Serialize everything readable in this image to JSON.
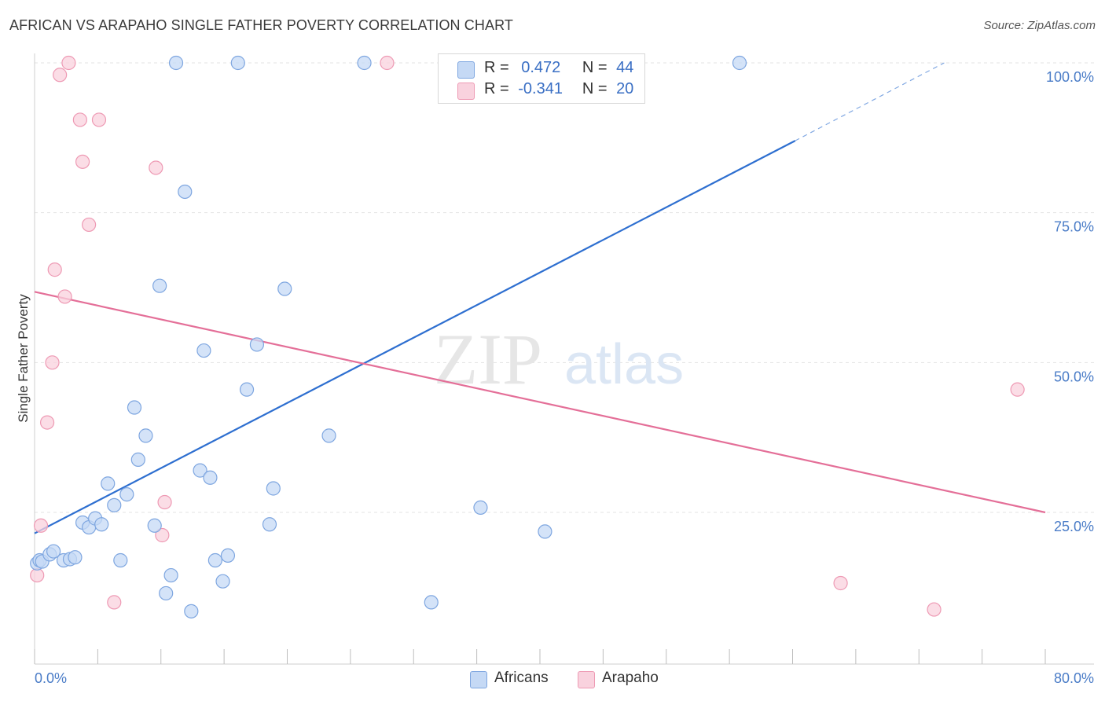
{
  "header": {
    "title": "AFRICAN VS ARAPAHO SINGLE FATHER POVERTY CORRELATION CHART",
    "source": "Source: ZipAtlas.com"
  },
  "watermark": {
    "zip": "ZIP",
    "atlas": "atlas"
  },
  "legend": {
    "r_label": "R =",
    "n_label": "N =",
    "africans": {
      "r": "0.472",
      "n": "44"
    },
    "arapaho": {
      "r": "-0.341",
      "n": "20"
    }
  },
  "bottom_legend": {
    "africans": "Africans",
    "arapaho": "Arapaho"
  },
  "colors": {
    "africans_fill": "#c5d9f5",
    "africans_stroke": "#7ea6e0",
    "africans_line": "#2e6fd0",
    "arapaho_fill": "#f9d2de",
    "arapaho_stroke": "#ee9ab4",
    "arapaho_line": "#e46f98",
    "tick_text": "#4a7cc7"
  },
  "chart_data": {
    "type": "scatter",
    "title": "AFRICAN VS ARAPAHO SINGLE FATHER POVERTY CORRELATION CHART",
    "xlabel": "",
    "ylabel": "Single Father Poverty",
    "xlim": [
      0,
      80
    ],
    "ylim": [
      0,
      105
    ],
    "x_tick_labels": [
      "0.0%",
      "80.0%"
    ],
    "y_ticks": [
      25,
      50,
      75,
      100
    ],
    "y_tick_labels": [
      "25.0%",
      "50.0%",
      "75.0%",
      "100.0%"
    ],
    "grid": "horizontal dashed",
    "legend_position": "top-center",
    "series": [
      {
        "name": "Africans",
        "r": 0.472,
        "n": 44,
        "points": [
          [
            0.2,
            16.5
          ],
          [
            0.4,
            17.0
          ],
          [
            0.6,
            16.8
          ],
          [
            1.2,
            18.0
          ],
          [
            1.5,
            18.5
          ],
          [
            2.3,
            17.0
          ],
          [
            2.8,
            17.2
          ],
          [
            3.2,
            17.5
          ],
          [
            3.8,
            23.3
          ],
          [
            4.3,
            22.5
          ],
          [
            4.8,
            24.0
          ],
          [
            5.3,
            23.0
          ],
          [
            5.8,
            29.8
          ],
          [
            6.3,
            26.2
          ],
          [
            6.8,
            17.0
          ],
          [
            7.3,
            28.0
          ],
          [
            7.9,
            42.5
          ],
          [
            8.8,
            37.8
          ],
          [
            9.5,
            22.8
          ],
          [
            8.2,
            33.8
          ],
          [
            9.9,
            62.8
          ],
          [
            10.8,
            14.5
          ],
          [
            10.4,
            11.5
          ],
          [
            11.2,
            100.0
          ],
          [
            11.9,
            78.5
          ],
          [
            12.4,
            8.5
          ],
          [
            13.1,
            32.0
          ],
          [
            13.4,
            52.0
          ],
          [
            13.9,
            30.8
          ],
          [
            14.3,
            17.0
          ],
          [
            14.9,
            13.5
          ],
          [
            15.3,
            17.8
          ],
          [
            16.1,
            100.0
          ],
          [
            16.8,
            45.5
          ],
          [
            17.6,
            53.0
          ],
          [
            18.6,
            23.0
          ],
          [
            18.9,
            29.0
          ],
          [
            19.8,
            62.3
          ],
          [
            23.3,
            37.8
          ],
          [
            26.1,
            100.0
          ],
          [
            31.4,
            10.0
          ],
          [
            35.3,
            25.8
          ],
          [
            40.4,
            21.8
          ],
          [
            55.8,
            100.0
          ]
        ],
        "trend": {
          "x1": 0,
          "y1": 21.5,
          "x2": 60.2,
          "y2": 87.0,
          "dash_x2": 72.0,
          "dash_y2": 100.0
        }
      },
      {
        "name": "Arapaho",
        "r": -0.341,
        "n": 20,
        "points": [
          [
            0.2,
            14.5
          ],
          [
            0.5,
            22.8
          ],
          [
            1.0,
            40.0
          ],
          [
            1.4,
            50.0
          ],
          [
            1.6,
            65.5
          ],
          [
            2.0,
            98.0
          ],
          [
            2.4,
            61.0
          ],
          [
            2.7,
            100.0
          ],
          [
            3.6,
            90.5
          ],
          [
            3.8,
            83.5
          ],
          [
            4.3,
            73.0
          ],
          [
            5.1,
            90.5
          ],
          [
            6.3,
            10.0
          ],
          [
            9.6,
            82.5
          ],
          [
            10.1,
            21.2
          ],
          [
            10.3,
            26.7
          ],
          [
            27.9,
            100.0
          ],
          [
            63.8,
            13.2
          ],
          [
            71.2,
            8.8
          ],
          [
            77.8,
            45.5
          ]
        ],
        "trend": {
          "x1": 0,
          "y1": 61.8,
          "x2": 80,
          "y2": 25.0
        }
      }
    ]
  }
}
